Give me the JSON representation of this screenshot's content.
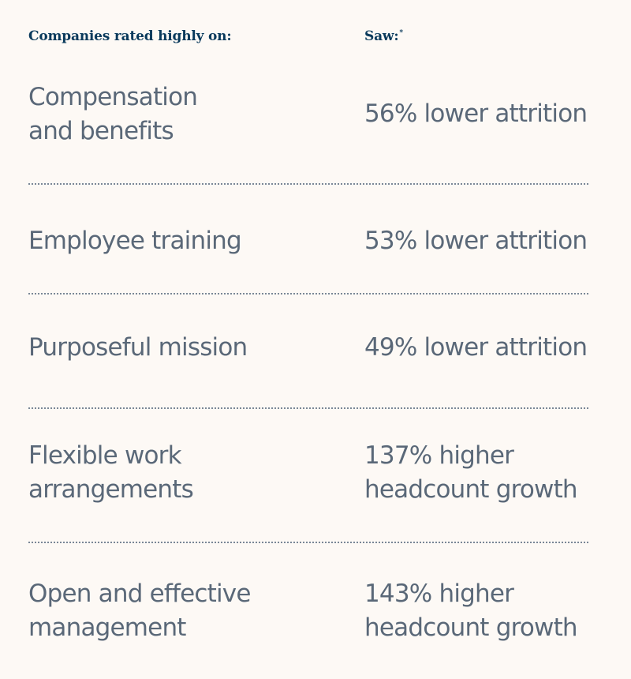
{
  "header": {
    "left": "Companies rated highly on:",
    "right": "Saw:",
    "right_marker": "*"
  },
  "rows": [
    {
      "factor": [
        "Compensation",
        "and benefits"
      ],
      "result": [
        "56% lower attrition"
      ]
    },
    {
      "factor": [
        "Employee training"
      ],
      "result": [
        "53% lower attrition"
      ]
    },
    {
      "factor": [
        "Purposeful mission"
      ],
      "result": [
        "49% lower attrition"
      ]
    },
    {
      "factor": [
        "Flexible work",
        "arrangements"
      ],
      "result": [
        "137% higher",
        "headcount growth"
      ]
    },
    {
      "factor": [
        "Open and effective",
        "management"
      ],
      "result": [
        "143% higher",
        "headcount growth"
      ]
    }
  ],
  "colors": {
    "background": "#fdf9f5",
    "header_text": "#0a3a5c",
    "body_text": "#5a6878",
    "divider": "#7a8796"
  }
}
